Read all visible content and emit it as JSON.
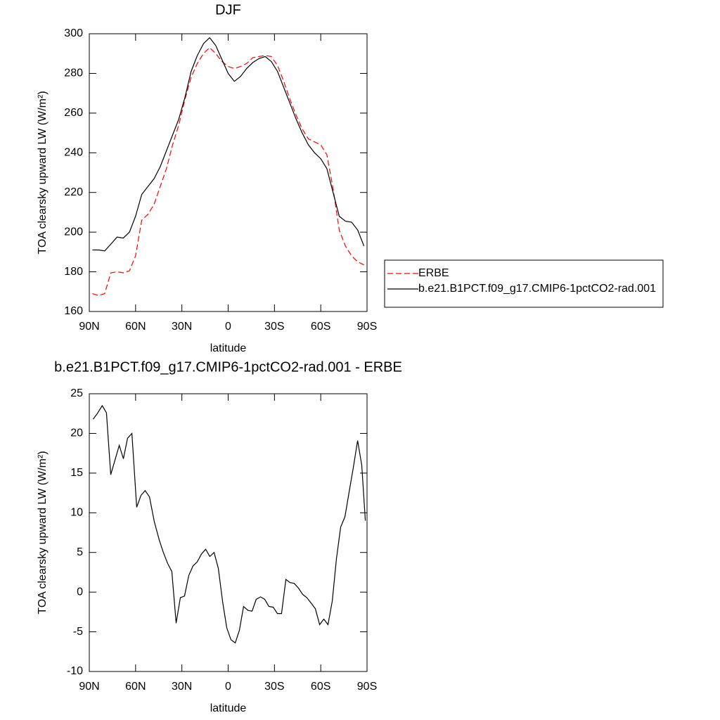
{
  "chart_data": [
    {
      "type": "line",
      "title": "DJF",
      "x_label": "latitude",
      "y_label": "TOA clearsky upward LW (W/m²)",
      "x": [
        88,
        84,
        80,
        76,
        72,
        68,
        64,
        60,
        56,
        52,
        48,
        44,
        40,
        36,
        32,
        28,
        24,
        20,
        16,
        12,
        8,
        4,
        0,
        -4,
        -8,
        -12,
        -16,
        -20,
        -24,
        -28,
        -32,
        -36,
        -40,
        -44,
        -48,
        -52,
        -56,
        -60,
        -64,
        -68,
        -72,
        -76,
        -80,
        -84,
        -88
      ],
      "series": [
        {
          "name": "ERBE",
          "color": "#ff0000",
          "style": "dashed",
          "values": [
            169,
            168,
            169,
            179.5,
            180,
            179.5,
            180.5,
            188,
            206,
            209,
            214,
            223,
            232,
            244,
            254,
            267,
            278,
            285,
            290,
            293,
            290,
            286,
            283.5,
            282.5,
            283.5,
            285,
            288,
            288.5,
            289,
            288.5,
            284,
            276,
            267,
            259,
            252,
            247,
            245.5,
            244,
            239,
            222,
            201,
            193,
            188,
            185,
            183.5
          ]
        },
        {
          "name": "b.e21.B1PCT.f09_g17.CMIP6-1pctCO2-rad.001",
          "color": "#000000",
          "style": "solid",
          "values": [
            191,
            191,
            190.5,
            194,
            197.5,
            197,
            200,
            208,
            219,
            223,
            227,
            233,
            241,
            249,
            257,
            268,
            281,
            289,
            295,
            298,
            294,
            287,
            280,
            276,
            278.5,
            282.5,
            285.5,
            287.5,
            288.5,
            286,
            281,
            273,
            265,
            257,
            250,
            244,
            240,
            237,
            232,
            220,
            208,
            205.5,
            205,
            201,
            193
          ]
        }
      ],
      "xlim": [
        90,
        -90
      ],
      "xticks": [
        {
          "value": 90,
          "label": "90N"
        },
        {
          "value": 60,
          "label": "60N"
        },
        {
          "value": 30,
          "label": "30N"
        },
        0,
        {
          "value": -30,
          "label": "30S"
        },
        {
          "value": -60,
          "label": "60S"
        },
        {
          "value": -90,
          "label": "90S"
        }
      ],
      "ylim": [
        160,
        300
      ],
      "yticks": [
        160,
        180,
        200,
        220,
        240,
        260,
        280,
        300
      ],
      "legend": "right"
    },
    {
      "type": "line",
      "title": "b.e21.B1PCT.f09_g17.CMIP6-1pctCO2-rad.001 - ERBE",
      "x_label": "latitude",
      "y_label": "TOA clearsky upward LW (W/m²)",
      "x": [
        87.5,
        84.8,
        81.6,
        78.9,
        76.1,
        70.6,
        67.9,
        65.2,
        62.4,
        59.3,
        56.5,
        53.8,
        51.0,
        47.9,
        44.7,
        42.0,
        39.2,
        36.5,
        33.7,
        31.0,
        28.3,
        25.5,
        22.8,
        20.1,
        17.3,
        14.6,
        11.9,
        9.1,
        6.4,
        3.6,
        0.9,
        -1.8,
        -4.6,
        -7.3,
        -10.0,
        -12.8,
        -15.5,
        -18.2,
        -21.0,
        -23.7,
        -26.4,
        -29.2,
        -31.9,
        -34.6,
        -37.4,
        -40.1,
        -42.8,
        -45.6,
        -48.3,
        -51.0,
        -53.8,
        -56.5,
        -59.3,
        -62.0,
        -64.7,
        -67.5,
        -70.2,
        -72.9,
        -75.7,
        -78.4,
        -81.1,
        -83.9,
        -86.6,
        -88.9
      ],
      "values": [
        21.8,
        22.5,
        23.5,
        22.6,
        14.8,
        18.5,
        16.8,
        19.4,
        20,
        10.7,
        12.2,
        12.8,
        12,
        8.9,
        6.6,
        5,
        3.6,
        2.6,
        -3.9,
        -0.7,
        -0.5,
        2.1,
        3.3,
        3.8,
        4.8,
        5.4,
        4.5,
        5,
        3,
        -1.2,
        -4.5,
        -6,
        -6.4,
        -4.8,
        -1.8,
        -2.3,
        -2.4,
        -0.9,
        -0.6,
        -0.9,
        -1.8,
        -1.9,
        -2.7,
        -2.7,
        1.6,
        1.2,
        1.1,
        0.5,
        -0.3,
        -0.7,
        -1.4,
        -2.1,
        -4.1,
        -3.4,
        -4.1,
        -1.1,
        4.2,
        8.2,
        9.5,
        12.6,
        15.7,
        19.1,
        16,
        9
      ],
      "color": "#000000",
      "xlim": [
        90,
        -90
      ],
      "xticks": [
        {
          "value": 90,
          "label": "90N"
        },
        {
          "value": 60,
          "label": "60N"
        },
        {
          "value": 30,
          "label": "30N"
        },
        0,
        {
          "value": -30,
          "label": "30S"
        },
        {
          "value": -60,
          "label": "60S"
        },
        {
          "value": -90,
          "label": "90S"
        }
      ],
      "ylim": [
        -10,
        25
      ],
      "yticks": [
        -10,
        -5,
        0,
        5,
        10,
        15,
        20,
        25
      ]
    }
  ]
}
